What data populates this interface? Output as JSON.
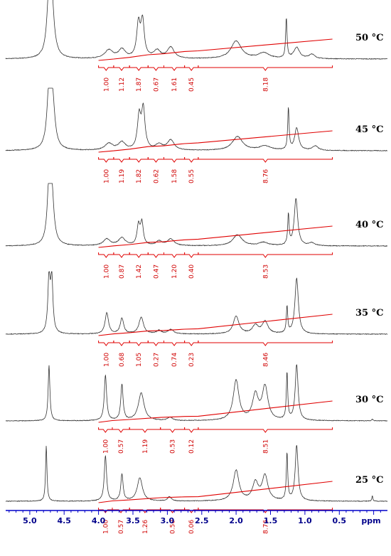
{
  "chart_data": {
    "type": "line",
    "title": "",
    "x_unit": "ppm",
    "x_range": [
      5.35,
      -0.2
    ],
    "x_reversed": true,
    "x_ticks": [
      "5.0",
      "4.5",
      "4.0",
      "3.5",
      "3.0",
      "2.5",
      "2.0",
      "1.5",
      "1.0",
      "0.5"
    ],
    "colors": {
      "spectrum": "#333333",
      "integral": "#e00000",
      "axis": "#0000c8"
    },
    "spectra": [
      {
        "label": "50 °C",
        "peaks": [
          {
            "ppm": 4.72,
            "h": 1.0,
            "w": 0.035
          },
          {
            "ppm": 4.68,
            "h": 0.9,
            "w": 0.04
          },
          {
            "ppm": 3.85,
            "h": 0.15,
            "w": 0.07
          },
          {
            "ppm": 3.66,
            "h": 0.16,
            "w": 0.06
          },
          {
            "ppm": 3.42,
            "h": 0.6,
            "w": 0.03
          },
          {
            "ppm": 3.36,
            "h": 0.65,
            "w": 0.03
          },
          {
            "ppm": 3.15,
            "h": 0.14,
            "w": 0.06
          },
          {
            "ppm": 2.95,
            "h": 0.2,
            "w": 0.06
          },
          {
            "ppm": 2.0,
            "h": 0.32,
            "w": 0.09
          },
          {
            "ppm": 1.6,
            "h": 0.1,
            "w": 0.1
          },
          {
            "ppm": 1.27,
            "h": 0.72,
            "w": 0.012
          },
          {
            "ppm": 1.12,
            "h": 0.2,
            "w": 0.05
          },
          {
            "ppm": 0.9,
            "h": 0.08,
            "w": 0.05
          }
        ],
        "integrals": [
          {
            "start": 4.0,
            "end": 3.78,
            "value": "1.00"
          },
          {
            "start": 3.78,
            "end": 3.55,
            "value": "1.12"
          },
          {
            "start": 3.55,
            "end": 3.28,
            "value": "1.87"
          },
          {
            "start": 3.28,
            "end": 3.05,
            "value": "0.67"
          },
          {
            "start": 3.05,
            "end": 2.75,
            "value": "1.61"
          },
          {
            "start": 2.75,
            "end": 2.55,
            "value": "0.45"
          },
          {
            "start": 2.55,
            "end": 0.6,
            "value": "8.18"
          }
        ]
      },
      {
        "label": "45 °C",
        "peaks": [
          {
            "ppm": 4.72,
            "h": 1.0,
            "w": 0.035
          },
          {
            "ppm": 4.67,
            "h": 0.85,
            "w": 0.04
          },
          {
            "ppm": 3.85,
            "h": 0.12,
            "w": 0.07
          },
          {
            "ppm": 3.66,
            "h": 0.14,
            "w": 0.06
          },
          {
            "ppm": 3.41,
            "h": 0.58,
            "w": 0.03
          },
          {
            "ppm": 3.35,
            "h": 0.72,
            "w": 0.03
          },
          {
            "ppm": 3.12,
            "h": 0.1,
            "w": 0.06
          },
          {
            "ppm": 2.95,
            "h": 0.18,
            "w": 0.06
          },
          {
            "ppm": 1.98,
            "h": 0.25,
            "w": 0.09
          },
          {
            "ppm": 1.58,
            "h": 0.08,
            "w": 0.1
          },
          {
            "ppm": 1.24,
            "h": 0.75,
            "w": 0.012
          },
          {
            "ppm": 1.12,
            "h": 0.4,
            "w": 0.035
          },
          {
            "ppm": 0.85,
            "h": 0.08,
            "w": 0.05
          }
        ],
        "integrals": [
          {
            "start": 4.0,
            "end": 3.78,
            "value": "1.00"
          },
          {
            "start": 3.78,
            "end": 3.55,
            "value": "1.19"
          },
          {
            "start": 3.55,
            "end": 3.28,
            "value": "1.82"
          },
          {
            "start": 3.28,
            "end": 3.05,
            "value": "0.62"
          },
          {
            "start": 3.05,
            "end": 2.75,
            "value": "1.58"
          },
          {
            "start": 2.75,
            "end": 2.55,
            "value": "0.55"
          },
          {
            "start": 2.55,
            "end": 0.6,
            "value": "8.76"
          }
        ]
      },
      {
        "label": "40 °C",
        "peaks": [
          {
            "ppm": 4.72,
            "h": 1.0,
            "w": 0.03
          },
          {
            "ppm": 4.68,
            "h": 0.9,
            "w": 0.035
          },
          {
            "ppm": 3.88,
            "h": 0.12,
            "w": 0.06
          },
          {
            "ppm": 3.66,
            "h": 0.14,
            "w": 0.06
          },
          {
            "ppm": 3.42,
            "h": 0.35,
            "w": 0.025
          },
          {
            "ppm": 3.37,
            "h": 0.4,
            "w": 0.025
          },
          {
            "ppm": 3.12,
            "h": 0.08,
            "w": 0.05
          },
          {
            "ppm": 2.95,
            "h": 0.12,
            "w": 0.06
          },
          {
            "ppm": 1.98,
            "h": 0.2,
            "w": 0.08
          },
          {
            "ppm": 1.6,
            "h": 0.06,
            "w": 0.08
          },
          {
            "ppm": 1.24,
            "h": 0.55,
            "w": 0.012
          },
          {
            "ppm": 1.13,
            "h": 0.85,
            "w": 0.03
          },
          {
            "ppm": 0.9,
            "h": 0.05,
            "w": 0.05
          }
        ],
        "integrals": [
          {
            "start": 4.0,
            "end": 3.78,
            "value": "1.00"
          },
          {
            "start": 3.78,
            "end": 3.55,
            "value": "0.87"
          },
          {
            "start": 3.55,
            "end": 3.28,
            "value": "1.42"
          },
          {
            "start": 3.28,
            "end": 3.05,
            "value": "0.47"
          },
          {
            "start": 3.05,
            "end": 2.75,
            "value": "1.20"
          },
          {
            "start": 2.75,
            "end": 2.55,
            "value": "0.40"
          },
          {
            "start": 2.55,
            "end": 0.6,
            "value": "8.53"
          }
        ]
      },
      {
        "label": "35 °C",
        "peaks": [
          {
            "ppm": 4.72,
            "h": 1.0,
            "w": 0.02
          },
          {
            "ppm": 4.68,
            "h": 0.95,
            "w": 0.02
          },
          {
            "ppm": 3.88,
            "h": 0.38,
            "w": 0.03
          },
          {
            "ppm": 3.66,
            "h": 0.28,
            "w": 0.03
          },
          {
            "ppm": 3.38,
            "h": 0.3,
            "w": 0.04
          },
          {
            "ppm": 3.12,
            "h": 0.06,
            "w": 0.04
          },
          {
            "ppm": 2.95,
            "h": 0.08,
            "w": 0.05
          },
          {
            "ppm": 2.0,
            "h": 0.32,
            "w": 0.05
          },
          {
            "ppm": 1.72,
            "h": 0.15,
            "w": 0.05
          },
          {
            "ppm": 1.58,
            "h": 0.22,
            "w": 0.05
          },
          {
            "ppm": 1.26,
            "h": 0.48,
            "w": 0.012
          },
          {
            "ppm": 1.12,
            "h": 1.0,
            "w": 0.03
          }
        ],
        "integrals": [
          {
            "start": 4.0,
            "end": 3.78,
            "value": "1.00"
          },
          {
            "start": 3.78,
            "end": 3.55,
            "value": "0.68"
          },
          {
            "start": 3.55,
            "end": 3.28,
            "value": "1.05"
          },
          {
            "start": 3.28,
            "end": 3.05,
            "value": "0.27"
          },
          {
            "start": 3.05,
            "end": 2.75,
            "value": "0.74"
          },
          {
            "start": 2.75,
            "end": 2.55,
            "value": "0.23"
          },
          {
            "start": 2.55,
            "end": 0.6,
            "value": "8.46"
          }
        ]
      },
      {
        "label": "30 °C",
        "peaks": [
          {
            "ppm": 4.72,
            "h": 1.0,
            "w": 0.015
          },
          {
            "ppm": 3.9,
            "h": 0.82,
            "w": 0.02
          },
          {
            "ppm": 3.66,
            "h": 0.65,
            "w": 0.02
          },
          {
            "ppm": 3.38,
            "h": 0.5,
            "w": 0.05
          },
          {
            "ppm": 2.96,
            "h": 0.06,
            "w": 0.04
          },
          {
            "ppm": 2.0,
            "h": 0.72,
            "w": 0.05
          },
          {
            "ppm": 1.72,
            "h": 0.45,
            "w": 0.05
          },
          {
            "ppm": 1.58,
            "h": 0.6,
            "w": 0.05
          },
          {
            "ppm": 1.26,
            "h": 0.85,
            "w": 0.012
          },
          {
            "ppm": 1.12,
            "h": 1.0,
            "w": 0.025
          },
          {
            "ppm": 0.02,
            "h": 0.03,
            "w": 0.01
          }
        ],
        "integrals": [
          {
            "start": 4.0,
            "end": 3.8,
            "value": "1.00"
          },
          {
            "start": 3.8,
            "end": 3.55,
            "value": "0.57"
          },
          {
            "start": 3.55,
            "end": 3.1,
            "value": "1.19"
          },
          {
            "start": 3.1,
            "end": 2.75,
            "value": "0.53"
          },
          {
            "start": 2.75,
            "end": 2.55,
            "value": "0.12"
          },
          {
            "start": 2.55,
            "end": 0.6,
            "value": "8.51"
          }
        ]
      },
      {
        "label": "25 °C",
        "peaks": [
          {
            "ppm": 4.76,
            "h": 1.0,
            "w": 0.012
          },
          {
            "ppm": 3.9,
            "h": 0.82,
            "w": 0.02
          },
          {
            "ppm": 3.66,
            "h": 0.48,
            "w": 0.02
          },
          {
            "ppm": 3.4,
            "h": 0.42,
            "w": 0.045
          },
          {
            "ppm": 2.97,
            "h": 0.08,
            "w": 0.03
          },
          {
            "ppm": 2.0,
            "h": 0.55,
            "w": 0.05
          },
          {
            "ppm": 1.72,
            "h": 0.32,
            "w": 0.05
          },
          {
            "ppm": 1.58,
            "h": 0.45,
            "w": 0.05
          },
          {
            "ppm": 1.26,
            "h": 0.85,
            "w": 0.012
          },
          {
            "ppm": 1.12,
            "h": 1.0,
            "w": 0.025
          },
          {
            "ppm": 0.02,
            "h": 0.1,
            "w": 0.008
          }
        ],
        "integrals": [
          {
            "start": 4.0,
            "end": 3.8,
            "value": "1.00"
          },
          {
            "start": 3.8,
            "end": 3.55,
            "value": "0.57"
          },
          {
            "start": 3.55,
            "end": 3.1,
            "value": "1.26"
          },
          {
            "start": 3.1,
            "end": 2.75,
            "value": "0.50"
          },
          {
            "start": 2.75,
            "end": 2.55,
            "value": "0.06"
          },
          {
            "start": 2.55,
            "end": 0.6,
            "value": "8.76"
          }
        ]
      }
    ]
  }
}
